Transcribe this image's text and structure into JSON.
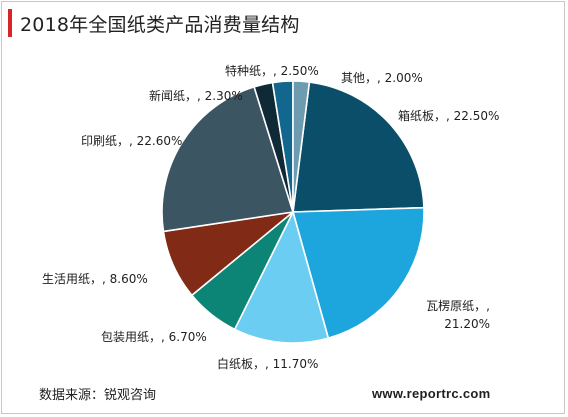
{
  "chart_data": {
    "type": "pie",
    "title": "2018年全国纸类产品消费量结构",
    "slices": [
      {
        "label": "箱纸板，, 22.50%",
        "value": 22.5,
        "color": "#0b4e6a"
      },
      {
        "label": "瓦楞原纸，, 21.20%",
        "value": 21.2,
        "color": "#1da5dd"
      },
      {
        "label": "白纸板，, 11.70%",
        "value": 11.7,
        "color": "#6ccdf3"
      },
      {
        "label": "包装用纸，, 6.70%",
        "value": 6.7,
        "color": "#0c8476"
      },
      {
        "label": "生活用纸，, 8.60%",
        "value": 8.6,
        "color": "#812a15"
      },
      {
        "label": "印刷纸，, 22.60%",
        "value": 22.6,
        "color": "#3b5562"
      },
      {
        "label": "新闻纸，, 2.30%",
        "value": 2.3,
        "color": "#0f2936"
      },
      {
        "label": "特种纸，, 2.50%",
        "value": 2.5,
        "color": "#12678e"
      },
      {
        "label": "其他，, 2.00%",
        "value": 2.0,
        "color": "#6d9cb0"
      }
    ]
  },
  "footer": {
    "source": "数据来源：锐观咨询",
    "website": "www.reportrc.com"
  },
  "colors": {
    "accent": "#d9252a"
  }
}
